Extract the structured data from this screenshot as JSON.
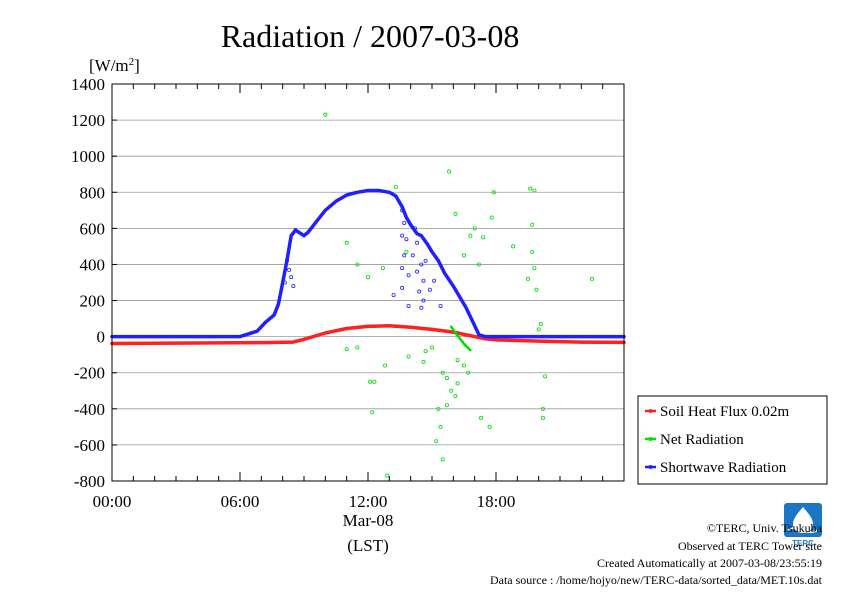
{
  "chart_data": {
    "type": "line",
    "title": "Radiation / 2007-03-08",
    "ylabel": "[W/m",
    "ylabel_sup": "2",
    "ylabel_close": "]",
    "xlabel_date": "Mar-08",
    "xlabel": "(LST)",
    "ylim": [
      -800,
      1400
    ],
    "yticks": [
      -800,
      -600,
      -400,
      -200,
      0,
      200,
      400,
      600,
      800,
      1000,
      1200,
      1400
    ],
    "xlim": [
      0,
      24
    ],
    "xticks": [
      {
        "hour": 0,
        "label": "00:00"
      },
      {
        "hour": 6,
        "label": "06:00"
      },
      {
        "hour": 12,
        "label": "12:00"
      },
      {
        "hour": 18,
        "label": "18:00"
      }
    ],
    "grid": true,
    "legend_position": "bottom-right-outside",
    "series": [
      {
        "name": "Soil Heat Flux 0.02m",
        "color": "#ff2020",
        "points": [
          [
            0,
            -38
          ],
          [
            4,
            -35
          ],
          [
            7,
            -33
          ],
          [
            8.5,
            -30
          ],
          [
            9,
            -15
          ],
          [
            10,
            20
          ],
          [
            11,
            45
          ],
          [
            12,
            57
          ],
          [
            13,
            60
          ],
          [
            14,
            52
          ],
          [
            15,
            40
          ],
          [
            16,
            25
          ],
          [
            17,
            0
          ],
          [
            17.5,
            -12
          ],
          [
            18,
            -18
          ],
          [
            20,
            -25
          ],
          [
            22,
            -30
          ],
          [
            24,
            -32
          ]
        ]
      },
      {
        "name": "Net Radiation",
        "color": "#00dd00",
        "points": [
          [
            15.9,
            55
          ],
          [
            16.1,
            20
          ],
          [
            16.3,
            -10
          ],
          [
            16.5,
            -40
          ],
          [
            16.8,
            -75
          ]
        ],
        "scatter": [
          [
            10.0,
            1230
          ],
          [
            13.3,
            830
          ],
          [
            15.8,
            915
          ],
          [
            17.9,
            800
          ],
          [
            18.8,
            500
          ],
          [
            11.0,
            520
          ],
          [
            11.5,
            400
          ],
          [
            13.8,
            470
          ],
          [
            12.7,
            380
          ],
          [
            12.0,
            330
          ],
          [
            11.0,
            -70
          ],
          [
            11.5,
            -60
          ],
          [
            12.3,
            -250
          ],
          [
            12.1,
            -250
          ],
          [
            12.2,
            -420
          ],
          [
            12.8,
            -160
          ],
          [
            13.9,
            -110
          ],
          [
            14.6,
            -140
          ],
          [
            14.7,
            -80
          ],
          [
            15.0,
            -60
          ],
          [
            15.5,
            -200
          ],
          [
            15.3,
            -400
          ],
          [
            15.7,
            -380
          ],
          [
            15.7,
            -230
          ],
          [
            15.9,
            -300
          ],
          [
            15.2,
            -580
          ],
          [
            15.4,
            -500
          ],
          [
            16.2,
            -260
          ],
          [
            16.7,
            -200
          ],
          [
            17.3,
            -450
          ],
          [
            17.7,
            -500
          ],
          [
            16.5,
            -160
          ],
          [
            16.1,
            -330
          ],
          [
            15.5,
            -680
          ],
          [
            12.9,
            -770
          ],
          [
            16.2,
            -130
          ],
          [
            17.8,
            660
          ],
          [
            16.8,
            560
          ],
          [
            17.4,
            550
          ],
          [
            16.5,
            450
          ],
          [
            17.2,
            400
          ],
          [
            17.0,
            600
          ],
          [
            19.6,
            820
          ],
          [
            19.8,
            810
          ],
          [
            19.7,
            620
          ],
          [
            19.7,
            470
          ],
          [
            19.8,
            380
          ],
          [
            19.5,
            320
          ],
          [
            19.9,
            260
          ],
          [
            20.1,
            70
          ],
          [
            20.0,
            40
          ],
          [
            20.3,
            -220
          ],
          [
            20.2,
            -400
          ],
          [
            20.2,
            -450
          ],
          [
            22.5,
            320
          ],
          [
            16.1,
            680
          ]
        ]
      },
      {
        "name": "Shortwave Radiation",
        "color": "#2020ff",
        "points": [
          [
            0,
            0
          ],
          [
            6,
            0
          ],
          [
            6.8,
            30
          ],
          [
            7.2,
            80
          ],
          [
            7.6,
            120
          ],
          [
            7.8,
            180
          ],
          [
            8.0,
            300
          ],
          [
            8.2,
            420
          ],
          [
            8.4,
            560
          ],
          [
            8.6,
            590
          ],
          [
            9.0,
            560
          ],
          [
            9.2,
            580
          ],
          [
            9.6,
            640
          ],
          [
            10.0,
            700
          ],
          [
            10.5,
            750
          ],
          [
            11.0,
            785
          ],
          [
            11.5,
            800
          ],
          [
            12.0,
            810
          ],
          [
            12.5,
            810
          ],
          [
            13.0,
            800
          ],
          [
            13.3,
            780
          ],
          [
            13.6,
            720
          ],
          [
            13.8,
            660
          ],
          [
            14.0,
            620
          ],
          [
            14.3,
            570
          ],
          [
            14.5,
            560
          ],
          [
            14.8,
            510
          ],
          [
            15.0,
            470
          ],
          [
            15.3,
            420
          ],
          [
            15.6,
            350
          ],
          [
            16.0,
            280
          ],
          [
            16.3,
            220
          ],
          [
            16.6,
            160
          ],
          [
            16.8,
            110
          ],
          [
            17.0,
            60
          ],
          [
            17.2,
            10
          ],
          [
            17.5,
            0
          ],
          [
            24,
            0
          ]
        ],
        "scatter": [
          [
            8.2,
            420
          ],
          [
            8.3,
            370
          ],
          [
            8.4,
            330
          ],
          [
            8.5,
            280
          ],
          [
            8.1,
            300
          ],
          [
            8.6,
            590
          ],
          [
            13.6,
            700
          ],
          [
            13.7,
            630
          ],
          [
            13.6,
            560
          ],
          [
            13.8,
            540
          ],
          [
            13.7,
            450
          ],
          [
            13.6,
            380
          ],
          [
            13.9,
            340
          ],
          [
            13.6,
            270
          ],
          [
            14.2,
            600
          ],
          [
            14.3,
            520
          ],
          [
            14.1,
            450
          ],
          [
            14.5,
            400
          ],
          [
            14.3,
            360
          ],
          [
            14.7,
            420
          ],
          [
            14.6,
            310
          ],
          [
            14.4,
            250
          ],
          [
            14.9,
            260
          ],
          [
            15.1,
            310
          ],
          [
            14.6,
            200
          ],
          [
            14.5,
            160
          ],
          [
            13.2,
            230
          ],
          [
            13.9,
            170
          ],
          [
            15.4,
            170
          ]
        ]
      }
    ]
  },
  "footer": {
    "copyright": "©TERC, Univ. Tsukuba",
    "site": "Observed at TERC Tower site",
    "created": "Created Automatically at 2007-03-08/23:55:19",
    "source": "Data source : /home/hojyo/new/TERC-data/sorted_data/MET.10s.dat"
  },
  "logo": {
    "text": "TERC",
    "color": "#1b77c4"
  }
}
